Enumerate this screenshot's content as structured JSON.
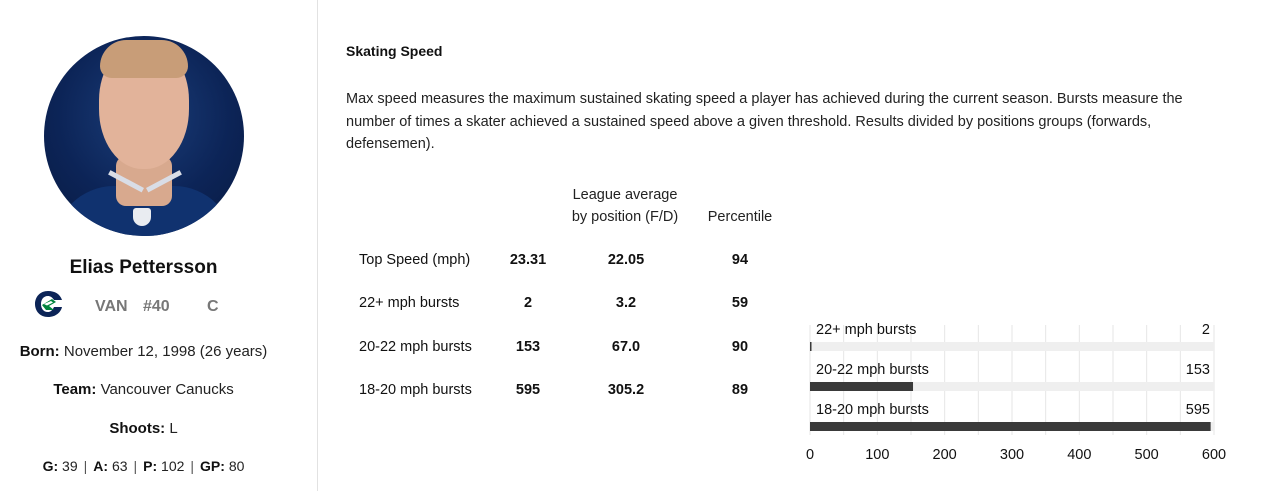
{
  "player": {
    "name": "Elias Pettersson",
    "team_abbr": "VAN",
    "number": "#40",
    "position": "C",
    "born_label": "Born:",
    "born_value": "November 12, 1998 (26 years)",
    "team_label": "Team:",
    "team_value": "Vancouver Canucks",
    "shoots_label": "Shoots:",
    "shoots_value": "L",
    "stats": {
      "g_label": "G:",
      "g_value": "39",
      "a_label": "A:",
      "a_value": "63",
      "p_label": "P:",
      "p_value": "102",
      "gp_label": "GP:",
      "gp_value": "80"
    }
  },
  "section": {
    "title": "Skating Speed",
    "description": "Max speed measures the maximum sustained skating speed a player has achieved during the current season. Bursts measure the number of times a skater achieved a sustained speed above a given threshold. Results divided by positions groups (forwards, defensemen)."
  },
  "table": {
    "header_avg_line1": "League average",
    "header_avg_line2": "by position (F/D)",
    "header_pct": "Percentile",
    "rows": [
      {
        "label": "Top Speed (mph)",
        "value": "23.31",
        "avg": "22.05",
        "pct": "94"
      },
      {
        "label": "22+ mph bursts",
        "value": "2",
        "avg": "3.2",
        "pct": "59"
      },
      {
        "label": "20-22 mph bursts",
        "value": "153",
        "avg": "67.0",
        "pct": "90"
      },
      {
        "label": "18-20 mph bursts",
        "value": "595",
        "avg": "305.2",
        "pct": "89"
      }
    ]
  },
  "chart_data": {
    "type": "bar",
    "orientation": "horizontal",
    "categories": [
      "22+ mph bursts",
      "20-22 mph bursts",
      "18-20 mph bursts"
    ],
    "values": [
      2,
      153,
      595
    ],
    "xlim": [
      0,
      600
    ],
    "xticks": [
      0,
      100,
      200,
      300,
      400,
      500,
      600
    ],
    "grid": true,
    "bar_color": "#3a3a3a",
    "track_color": "#efefef"
  }
}
